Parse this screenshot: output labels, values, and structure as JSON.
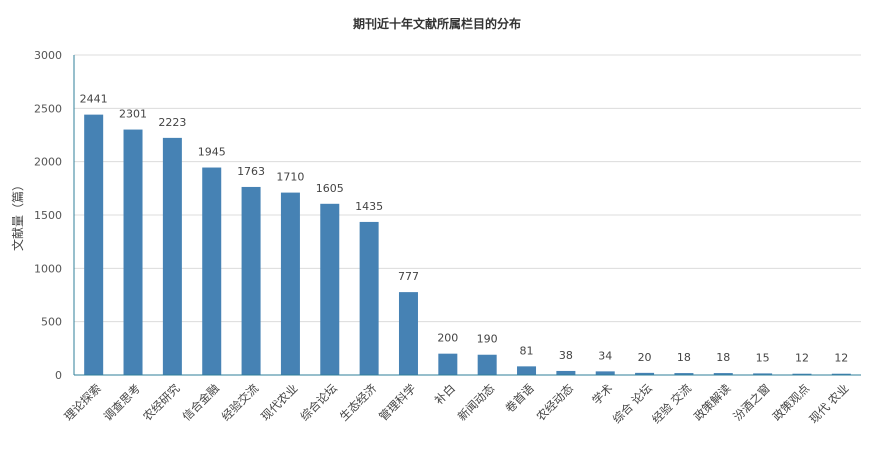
{
  "chart_data": {
    "type": "bar",
    "title": "期刊近十年文献所属栏目的分布",
    "ylabel": "文献量（篇）",
    "xlabel": "",
    "ylim": [
      0,
      3000
    ],
    "yticks": [
      0,
      500,
      1000,
      1500,
      2000,
      2500,
      3000
    ],
    "grid": true,
    "bar_color": "#4682b4",
    "axis_color": "#2f7f9a",
    "categories": [
      "理论探索",
      "调查思考",
      "农经研究",
      "信合金融",
      "经验交流",
      "现代农业",
      "综合论坛",
      "生态经济",
      "管理科学",
      "补白",
      "新闻动态",
      "卷首语",
      "农经动态",
      "学术",
      "综合 论坛",
      "经验 交流",
      "政策解读",
      "汾酒之窗",
      "政策观点",
      "现代 农业"
    ],
    "values": [
      2441,
      2301,
      2223,
      1945,
      1763,
      1710,
      1605,
      1435,
      777,
      200,
      190,
      81,
      38,
      34,
      20,
      18,
      18,
      15,
      12,
      12
    ]
  }
}
